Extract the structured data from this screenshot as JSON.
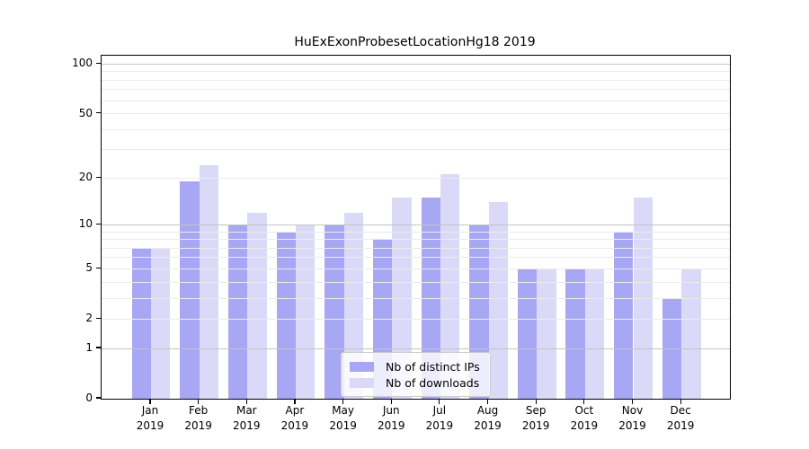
{
  "chart_data": {
    "type": "bar",
    "title": "HuExExonProbesetLocationHg18 2019",
    "categories": [
      "Jan 2019",
      "Feb 2019",
      "Mar 2019",
      "Apr 2019",
      "May 2019",
      "Jun 2019",
      "Jul 2019",
      "Aug 2019",
      "Sep 2019",
      "Oct 2019",
      "Nov 2019",
      "Dec 2019"
    ],
    "series": [
      {
        "name": "Nb of distinct IPs",
        "color": "#a7a7f3",
        "values": [
          7,
          19,
          10,
          9,
          10,
          8,
          15,
          10,
          5,
          5,
          9,
          3
        ]
      },
      {
        "name": "Nb of downloads",
        "color": "#dadaf8",
        "values": [
          7,
          24,
          12,
          10,
          12,
          15,
          21,
          14,
          5,
          5,
          15,
          5
        ]
      }
    ],
    "xlabel": "",
    "ylabel": "",
    "y_axis": {
      "scale": "log1p",
      "ylim": [
        0,
        100
      ],
      "tick_labels": [
        0,
        1,
        2,
        5,
        10,
        20,
        50,
        100
      ],
      "major_gridlines": [
        1,
        10,
        100
      ],
      "minor_gridlines": [
        2,
        3,
        4,
        5,
        6,
        7,
        8,
        9,
        20,
        30,
        40,
        50,
        60,
        70,
        80,
        90
      ]
    },
    "grid": true,
    "legend_position": "lower center"
  },
  "colors": {
    "grid_major": "#c4c4c4",
    "grid_minor": "#ebebeb",
    "spine": "#000000",
    "background": "#ffffff"
  }
}
